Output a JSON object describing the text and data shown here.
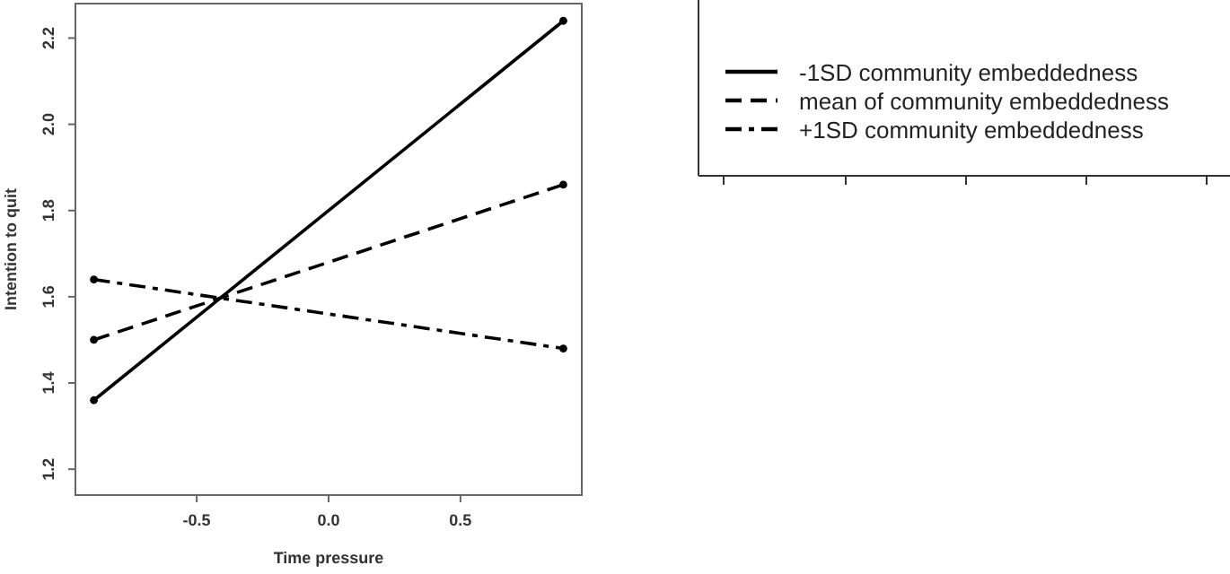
{
  "chart_data": {
    "type": "line",
    "xlabel": "Time pressure",
    "ylabel": "Intention to quit",
    "x": [
      -0.89,
      0.89
    ],
    "series": [
      {
        "name": "-1SD community embeddedness",
        "color": "#000000",
        "line_style": "solid",
        "values": [
          1.36,
          2.24
        ]
      },
      {
        "name": "mean of community embeddedness",
        "color": "#000000",
        "line_style": "dashed",
        "values": [
          1.5,
          1.86
        ]
      },
      {
        "name": "+1SD community embeddedness",
        "color": "#000000",
        "line_style": "dashdot",
        "values": [
          1.64,
          1.48
        ]
      }
    ],
    "xlim": [
      -0.96,
      0.96
    ],
    "xticks": [
      -0.5,
      {
        "value": 0,
        "label": "0.0"
      },
      0.5
    ],
    "ylim": [
      1.14,
      2.28
    ],
    "yticks": [
      1.2,
      1.4,
      1.6,
      1.8,
      {
        "value": 2,
        "label": "2.0"
      },
      2.2
    ],
    "marker": "circle",
    "grid": false,
    "legend": "top right"
  }
}
